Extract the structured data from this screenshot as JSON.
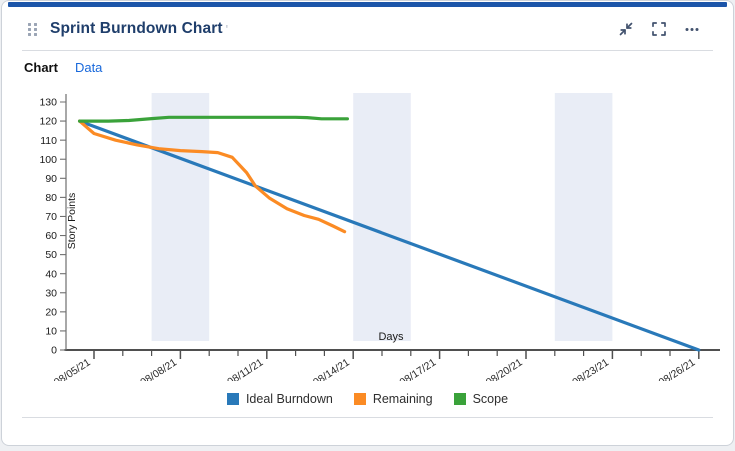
{
  "header": {
    "title": "Sprint Burndown Chart",
    "title_mark": "'",
    "accent_color": "#1c55a9",
    "icons": [
      {
        "name": "collapse-icon"
      },
      {
        "name": "fullscreen-icon"
      },
      {
        "name": "more-options-icon"
      },
      {
        "name": "drag-handle-icon"
      }
    ],
    "icon_color": "#42526e"
  },
  "tabs": [
    {
      "label": "Chart",
      "active": true
    },
    {
      "label": "Data",
      "active": false
    }
  ],
  "chart_data": {
    "type": "line",
    "title": "",
    "xlabel": "Days",
    "ylabel": "Story Points",
    "x_unit": "days_since_08/05/21",
    "ylim": [
      0,
      130
    ],
    "y_ticks": [
      0,
      10,
      20,
      30,
      40,
      50,
      60,
      70,
      80,
      90,
      100,
      110,
      120,
      130
    ],
    "x_tick_labels": [
      {
        "d": 0,
        "label": "08/05/21"
      },
      {
        "d": 3,
        "label": "08/08/21"
      },
      {
        "d": 6,
        "label": "08/11/21"
      },
      {
        "d": 9,
        "label": "08/14/21"
      },
      {
        "d": 12,
        "label": "08/17/21"
      },
      {
        "d": 15,
        "label": "08/20/21"
      },
      {
        "d": 18,
        "label": "08/23/21"
      },
      {
        "d": 21,
        "label": "08/26/21"
      }
    ],
    "x_minor_tick_days": [
      0,
      1,
      2,
      3,
      4,
      5,
      6,
      7,
      8,
      9,
      10,
      11,
      12,
      13,
      14,
      15,
      16,
      17,
      18,
      19,
      20,
      21
    ],
    "weekend_bands_days": [
      [
        2,
        4
      ],
      [
        9,
        11
      ],
      [
        16,
        18
      ]
    ],
    "band_color": "#e9edf6",
    "grid": false,
    "legend_position": "bottom",
    "series": [
      {
        "name": "Ideal Burndown",
        "color": "#2979b9",
        "points": [
          [
            -0.5,
            120
          ],
          [
            21,
            0
          ]
        ]
      },
      {
        "name": "Remaining",
        "color": "#fb8b24",
        "points": [
          [
            -0.5,
            120
          ],
          [
            0,
            113.5
          ],
          [
            0.75,
            110
          ],
          [
            1.5,
            107.5
          ],
          [
            2.25,
            105.5
          ],
          [
            3,
            104.5
          ],
          [
            3.75,
            104
          ],
          [
            4.3,
            103.5
          ],
          [
            4.8,
            101
          ],
          [
            5.3,
            93
          ],
          [
            5.6,
            86
          ],
          [
            6.1,
            79.5
          ],
          [
            6.7,
            74
          ],
          [
            7.3,
            70.5
          ],
          [
            7.8,
            68.5
          ],
          [
            8.3,
            65
          ],
          [
            8.7,
            62
          ]
        ]
      },
      {
        "name": "Scope",
        "color": "#3aa23a",
        "points": [
          [
            -0.5,
            120
          ],
          [
            0.5,
            120
          ],
          [
            1.2,
            120.3
          ],
          [
            2,
            121.3
          ],
          [
            2.6,
            122
          ],
          [
            4,
            122
          ],
          [
            6,
            122
          ],
          [
            7,
            122
          ],
          [
            7.4,
            121.8
          ],
          [
            7.9,
            121.2
          ],
          [
            8.8,
            121.2
          ]
        ]
      }
    ]
  }
}
